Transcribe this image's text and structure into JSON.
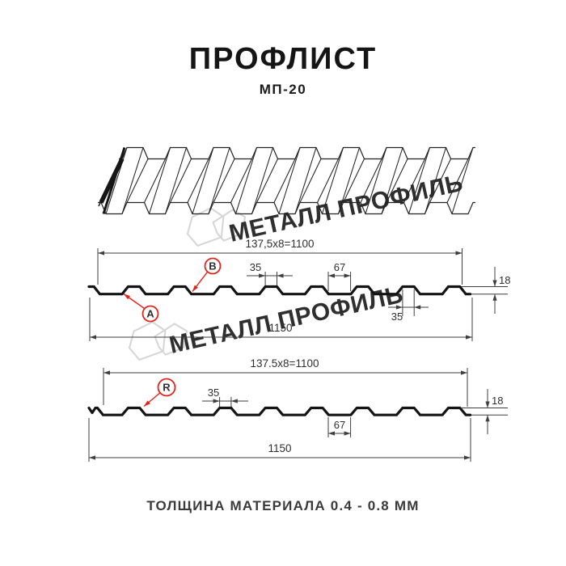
{
  "header": {
    "title": "ПРОФЛИСТ",
    "subtitle": "МП-20"
  },
  "footer": {
    "text": "ТОЛЩИНА МАТЕРИАЛА 0.4 - 0.8 ММ"
  },
  "watermark": {
    "text": "МЕТАЛЛ ПРОФИЛЬ"
  },
  "colors": {
    "accent_red": "#e2231a",
    "dim_line": "#3f3f3f",
    "profile_line": "#141414",
    "watermark_gray": "#d5d5d5"
  },
  "section_top": {
    "pitch_dim": "137,5x8=1100",
    "rib_top_width": "35",
    "pan_width": "67",
    "rib_width_bottom": "35",
    "height_dim": "18",
    "full_width_dim": "1150",
    "side_a_label": "A",
    "side_b_label": "B"
  },
  "section_bottom": {
    "pitch_dim": "137.5x8=1100",
    "rib_top_width": "35",
    "pan_width": "67",
    "height_dim": "18",
    "full_width_dim": "1150",
    "side_r_label": "R"
  }
}
